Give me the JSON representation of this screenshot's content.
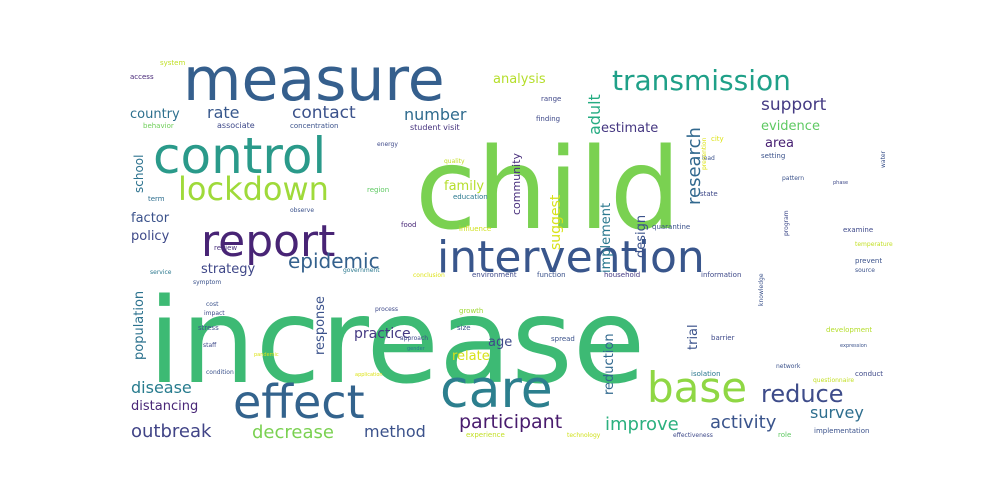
{
  "word_cloud": {
    "words": [
      {
        "text": "increase",
        "color": "#3dba74"
      },
      {
        "text": "child",
        "color": "#7ad151"
      },
      {
        "text": "measure",
        "color": "#355f8d"
      },
      {
        "text": "control",
        "color": "#2a9a8a"
      },
      {
        "text": "care",
        "color": "#2c7f8e"
      },
      {
        "text": "intervention",
        "color": "#39568c"
      },
      {
        "text": "effect",
        "color": "#33638d"
      },
      {
        "text": "report",
        "color": "#482475"
      },
      {
        "text": "base",
        "color": "#8fd744"
      },
      {
        "text": "lockdown",
        "color": "#9fda3a"
      },
      {
        "text": "transmission",
        "color": "#1fa088"
      },
      {
        "text": "epidemic",
        "color": "#34618d"
      },
      {
        "text": "reduce",
        "color": "#3e4c8a"
      },
      {
        "text": "participant",
        "color": "#481b6d"
      },
      {
        "text": "outbreak",
        "color": "#414487"
      },
      {
        "text": "improve",
        "color": "#2bb07f"
      },
      {
        "text": "activity",
        "color": "#3a548c"
      },
      {
        "text": "survey",
        "color": "#2e6e8e"
      },
      {
        "text": "disease",
        "color": "#287c8e"
      },
      {
        "text": "decrease",
        "color": "#7ad151"
      },
      {
        "text": "method",
        "color": "#3b528b"
      },
      {
        "text": "number",
        "color": "#2f6b8e"
      },
      {
        "text": "rate",
        "color": "#38588c"
      },
      {
        "text": "contact",
        "color": "#3b528b"
      },
      {
        "text": "support",
        "color": "#443a83"
      },
      {
        "text": "research",
        "color": "#31688e"
      },
      {
        "text": "adult",
        "color": "#25ac82"
      },
      {
        "text": "analysis",
        "color": "#b5de2b"
      },
      {
        "text": "practice",
        "color": "#443983"
      },
      {
        "text": "age",
        "color": "#3e4989"
      },
      {
        "text": "relate",
        "color": "#d8e219"
      },
      {
        "text": "strategy",
        "color": "#3f4788"
      },
      {
        "text": "response",
        "color": "#3b528b"
      },
      {
        "text": "population",
        "color": "#2c728e"
      },
      {
        "text": "distancing",
        "color": "#482677"
      },
      {
        "text": "family",
        "color": "#b5de2b"
      },
      {
        "text": "suggest",
        "color": "#d8e219"
      },
      {
        "text": "implement",
        "color": "#2a788e"
      },
      {
        "text": "design",
        "color": "#3b528b"
      },
      {
        "text": "estimate",
        "color": "#453781"
      },
      {
        "text": "evidence",
        "color": "#5ec962"
      },
      {
        "text": "area",
        "color": "#482173"
      },
      {
        "text": "community",
        "color": "#472d7b"
      },
      {
        "text": "country",
        "color": "#2d708e"
      },
      {
        "text": "school",
        "color": "#2c728e"
      },
      {
        "text": "factor",
        "color": "#3b528b"
      },
      {
        "text": "policy",
        "color": "#3e4989"
      },
      {
        "text": "reduction",
        "color": "#31688e"
      },
      {
        "text": "trial",
        "color": "#3b528b"
      },
      {
        "text": "system",
        "color": "#c0df25"
      },
      {
        "text": "access",
        "color": "#482878"
      },
      {
        "text": "behavior",
        "color": "#6ece58"
      },
      {
        "text": "associate",
        "color": "#3e4989"
      },
      {
        "text": "concentration",
        "color": "#3b528b"
      },
      {
        "text": "student visit",
        "color": "#46337e"
      },
      {
        "text": "finding",
        "color": "#3e4989"
      },
      {
        "text": "range",
        "color": "#3f4788"
      },
      {
        "text": "energy",
        "color": "#3e4989"
      },
      {
        "text": "quality",
        "color": "#c2df23"
      },
      {
        "text": "region",
        "color": "#5ec962"
      },
      {
        "text": "education",
        "color": "#2a788e"
      },
      {
        "text": "term",
        "color": "#2e6e8e"
      },
      {
        "text": "observe",
        "color": "#3b528b"
      },
      {
        "text": "influence",
        "color": "#d0e11c"
      },
      {
        "text": "food",
        "color": "#482878"
      },
      {
        "text": "quarantine",
        "color": "#3b528b"
      },
      {
        "text": "review",
        "color": "#472d7b"
      },
      {
        "text": "government",
        "color": "#2a788e"
      },
      {
        "text": "conclusion",
        "color": "#dde318"
      },
      {
        "text": "environment",
        "color": "#3e4989"
      },
      {
        "text": "function",
        "color": "#3b528b"
      },
      {
        "text": "household",
        "color": "#443983"
      },
      {
        "text": "information",
        "color": "#3e4989"
      },
      {
        "text": "service",
        "color": "#2a788e"
      },
      {
        "text": "symptom",
        "color": "#3b528b"
      },
      {
        "text": "cost",
        "color": "#3b528b"
      },
      {
        "text": "impact",
        "color": "#3e4989"
      },
      {
        "text": "stress",
        "color": "#3b528b"
      },
      {
        "text": "staff",
        "color": "#3e4989"
      },
      {
        "text": "condition",
        "color": "#3b528b"
      },
      {
        "text": "process",
        "color": "#3e4989"
      },
      {
        "text": "growth",
        "color": "#a0da39"
      },
      {
        "text": "size",
        "color": "#3b528b"
      },
      {
        "text": "approach",
        "color": "#3e4989"
      },
      {
        "text": "gender",
        "color": "#2a788e"
      },
      {
        "text": "spread",
        "color": "#3b528b"
      },
      {
        "text": "application",
        "color": "#dde318"
      },
      {
        "text": "experience",
        "color": "#c2df23"
      },
      {
        "text": "technology",
        "color": "#d0e11c"
      },
      {
        "text": "effectiveness",
        "color": "#3e4989"
      },
      {
        "text": "role",
        "color": "#5ec962"
      },
      {
        "text": "implementation",
        "color": "#3b528b"
      },
      {
        "text": "isolation",
        "color": "#2a788e"
      },
      {
        "text": "network",
        "color": "#3b528b"
      },
      {
        "text": "barrier",
        "color": "#3e4989"
      },
      {
        "text": "knowledge",
        "color": "#3b528b"
      },
      {
        "text": "development",
        "color": "#b5de2b"
      },
      {
        "text": "expression",
        "color": "#3b528b"
      },
      {
        "text": "conduct",
        "color": "#3e4989"
      },
      {
        "text": "prevent",
        "color": "#3b528b"
      },
      {
        "text": "examine",
        "color": "#3e4989"
      },
      {
        "text": "temperature",
        "color": "#c2df23"
      },
      {
        "text": "source",
        "color": "#3b528b"
      },
      {
        "text": "program",
        "color": "#3e4989"
      },
      {
        "text": "setting",
        "color": "#3b528b"
      },
      {
        "text": "city",
        "color": "#dde318"
      },
      {
        "text": "lead",
        "color": "#3b528b"
      },
      {
        "text": "state",
        "color": "#3e4989"
      },
      {
        "text": "pattern",
        "color": "#3b528b"
      },
      {
        "text": "prevention",
        "color": "#dde318"
      },
      {
        "text": "phase",
        "color": "#3e4989"
      },
      {
        "text": "water",
        "color": "#3b528b"
      },
      {
        "text": "questionnaire",
        "color": "#c2df23"
      },
      {
        "text": "pandemic",
        "color": "#dde318"
      }
    ]
  }
}
